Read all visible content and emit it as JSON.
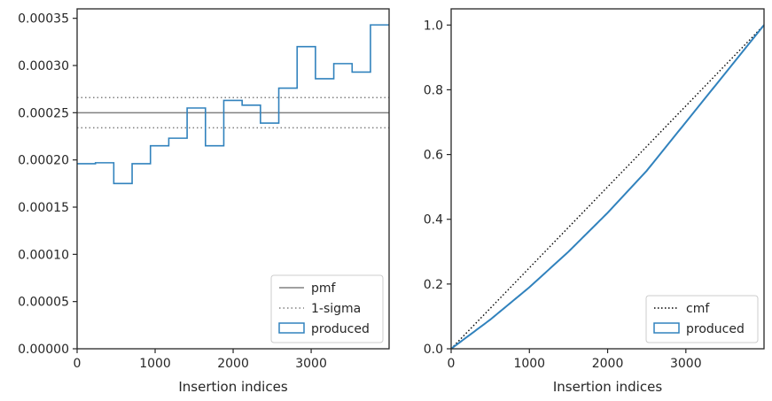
{
  "chart_data": [
    {
      "type": "step-histogram",
      "xlabel": "Insertion indices",
      "ylabel": "",
      "xlim": [
        0,
        3999
      ],
      "ylim": [
        0,
        0.00036
      ],
      "xticks": [
        0,
        1000,
        2000,
        3000
      ],
      "xtick_labels": [
        "0",
        "1000",
        "2000",
        "3000"
      ],
      "yticks": [
        0,
        5e-05,
        0.0001,
        0.00015,
        0.0002,
        0.00025,
        0.0003,
        0.00035
      ],
      "ytick_labels": [
        "0.00000",
        "0.00005",
        "0.00010",
        "0.00015",
        "0.00020",
        "0.00025",
        "0.00030",
        "0.00035"
      ],
      "grid": false,
      "legend_position": "lower-right",
      "bin_edges": [
        0,
        235,
        470,
        705,
        940,
        1175,
        1410,
        1645,
        1880,
        2115,
        2350,
        2585,
        2820,
        3055,
        3290,
        3525,
        3760,
        3999
      ],
      "values": [
        0.000196,
        0.000197,
        0.000175,
        0.000196,
        0.000215,
        0.000223,
        0.000255,
        0.000215,
        0.000263,
        0.000258,
        0.000239,
        0.000276,
        0.00032,
        0.000286,
        0.000302,
        0.000293,
        0.000343
      ],
      "pmf": 0.00025,
      "sigma_upper": 0.000266,
      "sigma_lower": 0.000234,
      "legend": [
        "pmf",
        "1-sigma",
        "produced"
      ],
      "colors": {
        "produced": "#3182bd",
        "pmf": "#808080",
        "sigma": "#808080"
      }
    },
    {
      "type": "line",
      "xlabel": "Insertion indices",
      "ylabel": "",
      "xlim": [
        0,
        3999
      ],
      "ylim": [
        0,
        1.05
      ],
      "xticks": [
        0,
        1000,
        2000,
        3000
      ],
      "xtick_labels": [
        "0",
        "1000",
        "2000",
        "3000"
      ],
      "yticks": [
        0,
        0.2,
        0.4,
        0.6,
        0.8,
        1.0
      ],
      "ytick_labels": [
        "0.0",
        "0.2",
        "0.4",
        "0.6",
        "0.8",
        "1.0"
      ],
      "grid": false,
      "legend_position": "lower-right",
      "series": [
        {
          "name": "cmf",
          "x": [
            0,
            3999
          ],
          "y": [
            0,
            1.0
          ]
        },
        {
          "name": "produced",
          "x": [
            0,
            500,
            1000,
            1500,
            2000,
            2500,
            3000,
            3500,
            3999
          ],
          "y": [
            0,
            0.09,
            0.19,
            0.3,
            0.42,
            0.55,
            0.7,
            0.85,
            1.0
          ]
        }
      ],
      "legend": [
        "cmf",
        "produced"
      ],
      "colors": {
        "cmf": "#000000",
        "produced": "#3182bd"
      }
    }
  ]
}
